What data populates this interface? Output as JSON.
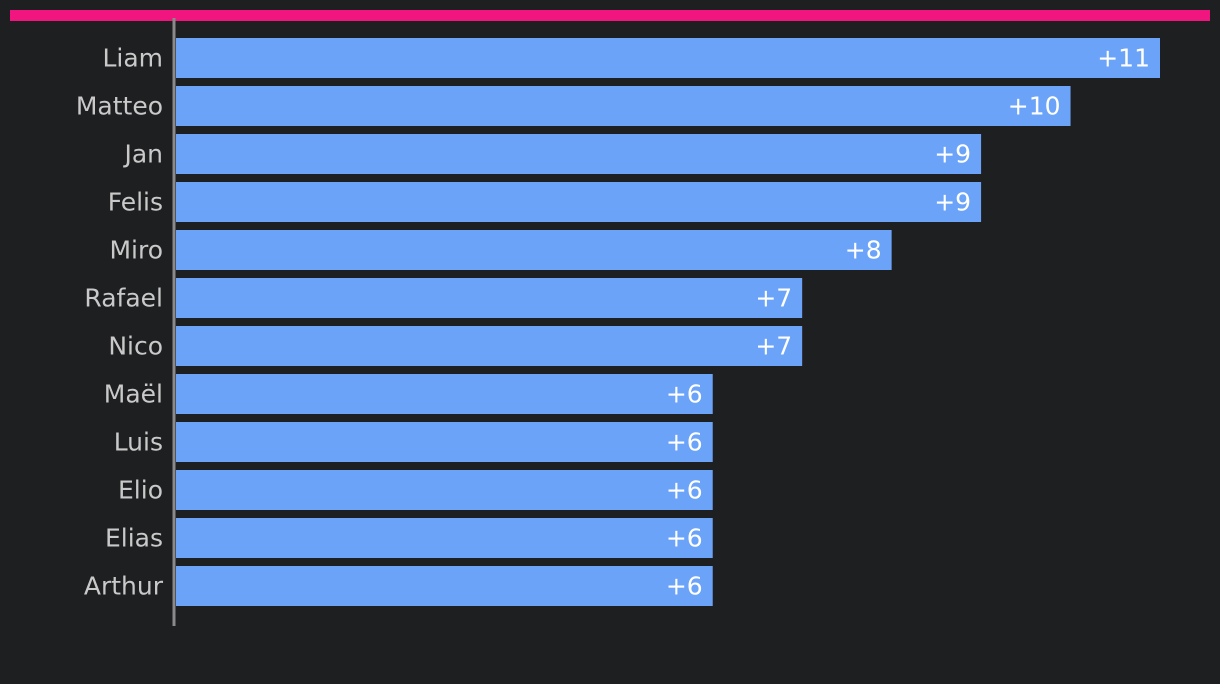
{
  "chart_data": {
    "type": "bar",
    "orientation": "horizontal",
    "categories": [
      "Liam",
      "Matteo",
      "Jan",
      "Felis",
      "Miro",
      "Rafael",
      "Nico",
      "Maël",
      "Luis",
      "Elio",
      "Elias",
      "Arthur"
    ],
    "values": [
      11,
      10,
      9,
      9,
      8,
      7,
      7,
      6,
      6,
      6,
      6,
      6
    ],
    "value_labels": [
      "+11",
      "+10",
      "+9",
      "+9",
      "+8",
      "+7",
      "+7",
      "+6",
      "+6",
      "+6",
      "+6",
      "+6"
    ],
    "color": "#6ba3f9",
    "xlim": [
      0,
      11
    ]
  }
}
